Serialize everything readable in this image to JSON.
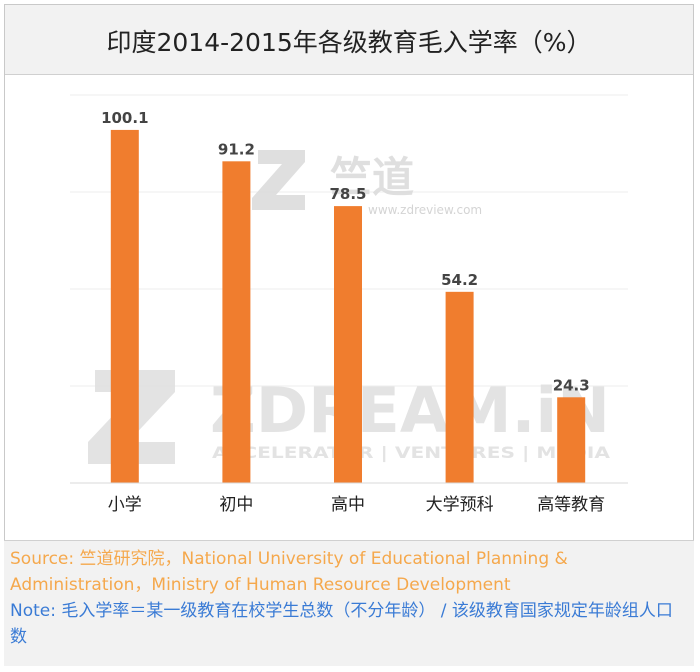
{
  "title": "印度2014-2015年各级教育毛入学率（%）",
  "chart_data": {
    "type": "bar",
    "categories": [
      "小学",
      "初中",
      "高中",
      "大学预科",
      "高等教育"
    ],
    "values": [
      100.1,
      91.2,
      78.5,
      54.2,
      24.3
    ],
    "data_labels": [
      "100.1",
      "91.2",
      "78.5",
      "54.2",
      "24.3"
    ],
    "ylim": [
      0,
      110
    ],
    "grid": true,
    "bar_color": "#f07d2e"
  },
  "watermark": {
    "top_brand": "竺道",
    "top_url": "www.zdreview.com",
    "main_brand": "ZDREAM.iN",
    "main_tagline": "ACCELERATOR | VENTURES | MEDIA"
  },
  "notes": {
    "source": "Source: 竺道研究院，National University of Educational Planning & Administration，Ministry of Human Resource Development",
    "note": "Note: 毛入学率＝某一级教育在校学生总数（不分年龄） / 该级教育国家规定年龄组人口数"
  },
  "colors": {
    "source_text": "#f5a84c",
    "note_text": "#3a7bd5",
    "watermark": "#dcdcdc"
  }
}
